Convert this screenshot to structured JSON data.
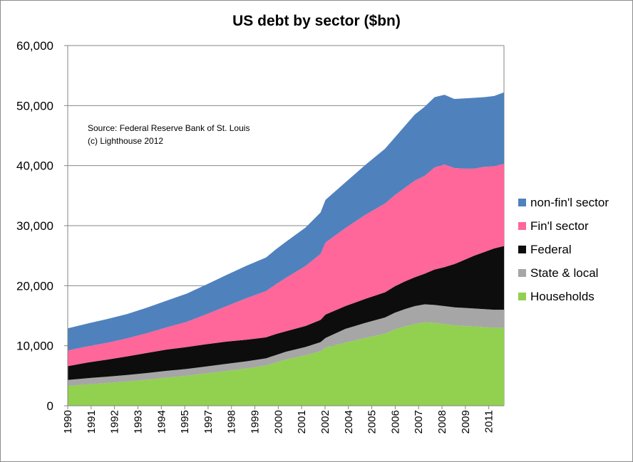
{
  "chart_data": {
    "type": "area",
    "stacked": true,
    "title": "US debt by sector ($bn)",
    "xlabel": "",
    "ylabel": "",
    "ylim": [
      0,
      60000
    ],
    "yticks": [
      0,
      10000,
      20000,
      30000,
      40000,
      50000,
      60000
    ],
    "ytick_labels": [
      "0",
      "10,000",
      "20,000",
      "30,000",
      "40,000",
      "50,000",
      "60,000"
    ],
    "xlim": [
      1990,
      2012
    ],
    "xtick_labels": [
      "1990",
      "1991",
      "1992",
      "1993",
      "1994",
      "1995",
      "1997",
      "1998",
      "1999",
      "2000",
      "2001",
      "2002",
      "2004",
      "2005",
      "2006",
      "2007",
      "2008",
      "2009",
      "2011"
    ],
    "annotation": [
      "Source: Federal Reserve Bank of St. Louis",
      "(c) Lighthouse 2012"
    ],
    "legend_position": "right",
    "x": [
      1990.0,
      1991.0,
      1992.0,
      1993.0,
      1994.0,
      1995.0,
      1996.0,
      1997.0,
      1998.0,
      1999.0,
      2000.0,
      2000.5,
      2001.0,
      2002.0,
      2002.75,
      2003.0,
      2004.0,
      2005.0,
      2006.0,
      2006.5,
      2007.0,
      2007.5,
      2008.0,
      2008.5,
      2009.0,
      2009.5,
      2010.0,
      2010.5,
      2011.0,
      2011.5,
      2012.0
    ],
    "series": [
      {
        "name": "Households",
        "color": "#92d050",
        "values": [
          3300,
          3550,
          3800,
          4050,
          4350,
          4700,
          5000,
          5400,
          5800,
          6200,
          6700,
          7200,
          7700,
          8400,
          9100,
          9700,
          10500,
          11300,
          12000,
          12700,
          13200,
          13600,
          13900,
          13800,
          13600,
          13400,
          13300,
          13200,
          13100,
          13000,
          13000
        ]
      },
      {
        "name": "State & local",
        "color": "#a6a6a6",
        "values": [
          1000,
          1050,
          1050,
          1080,
          1100,
          1120,
          1130,
          1150,
          1180,
          1200,
          1200,
          1250,
          1300,
          1400,
          1500,
          1600,
          2300,
          2500,
          2700,
          2800,
          2900,
          3000,
          3000,
          3000,
          3000,
          3000,
          3000,
          3000,
          3000,
          3000,
          3000
        ]
      },
      {
        "name": "Federal",
        "color": "#0d0d0d",
        "values": [
          2300,
          2600,
          2850,
          3100,
          3350,
          3550,
          3650,
          3700,
          3700,
          3600,
          3500,
          3500,
          3400,
          3500,
          3700,
          3900,
          3800,
          4000,
          4200,
          4400,
          4600,
          4800,
          5100,
          5900,
          6500,
          7200,
          8000,
          8800,
          9500,
          10200,
          10600
        ]
      },
      {
        "name": "Fin'l sector",
        "color": "#ff6699",
        "values": [
          2600,
          2700,
          2800,
          3000,
          3300,
          3700,
          4200,
          5000,
          5900,
          6900,
          7700,
          8300,
          8900,
          10000,
          11000,
          12000,
          13000,
          14000,
          14800,
          15200,
          15600,
          16100,
          16300,
          17000,
          17100,
          16000,
          15200,
          14500,
          14200,
          13700,
          13700
        ]
      },
      {
        "name": "non-fin'l sector",
        "color": "#4f81bd",
        "values": [
          3700,
          3800,
          3950,
          4050,
          4250,
          4450,
          4700,
          4950,
          5200,
          5400,
          5600,
          5800,
          6000,
          6400,
          6900,
          7100,
          7600,
          8300,
          9100,
          9600,
          10300,
          11000,
          11500,
          11700,
          11600,
          11500,
          11700,
          11800,
          11600,
          11700,
          11900
        ]
      }
    ]
  }
}
